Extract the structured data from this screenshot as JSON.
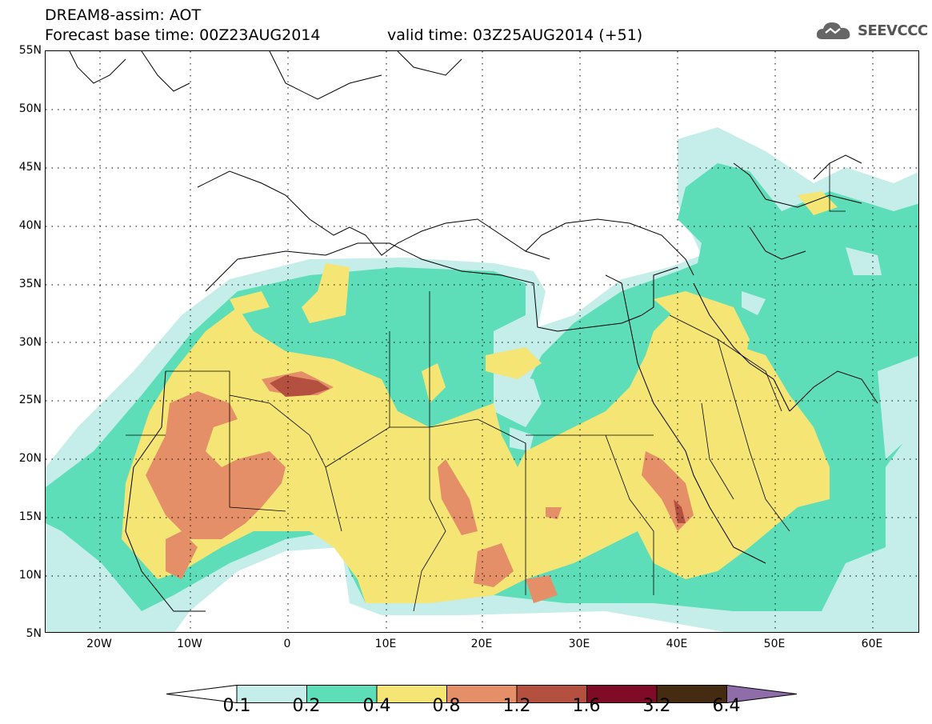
{
  "header": {
    "line1": "DREAM8-assim: AOT",
    "line2": "Forecast base time: 00Z23AUG2014",
    "line2b": "valid time: 03Z25AUG2014 (+51)",
    "logo_text": "SEEVCCC",
    "logo_icon": "cloud-icon"
  },
  "axes": {
    "lat_labels": [
      "55N",
      "50N",
      "45N",
      "40N",
      "35N",
      "30N",
      "25N",
      "20N",
      "15N",
      "10N",
      "5N"
    ],
    "lon_labels": [
      "20W",
      "10W",
      "0",
      "10E",
      "20E",
      "30E",
      "40E",
      "50E",
      "60E"
    ]
  },
  "legend": {
    "labels": [
      "0.1",
      "0.2",
      "0.4",
      "0.8",
      "1.2",
      "1.6",
      "3.2",
      "6.4"
    ],
    "colors": [
      "#c5eeea",
      "#5ddeb8",
      "#f4e574",
      "#e58f68",
      "#b4503f",
      "#7f0b26",
      "#452b12",
      "#8f6da9"
    ],
    "left_arrow_color": "#ffffff"
  }
}
